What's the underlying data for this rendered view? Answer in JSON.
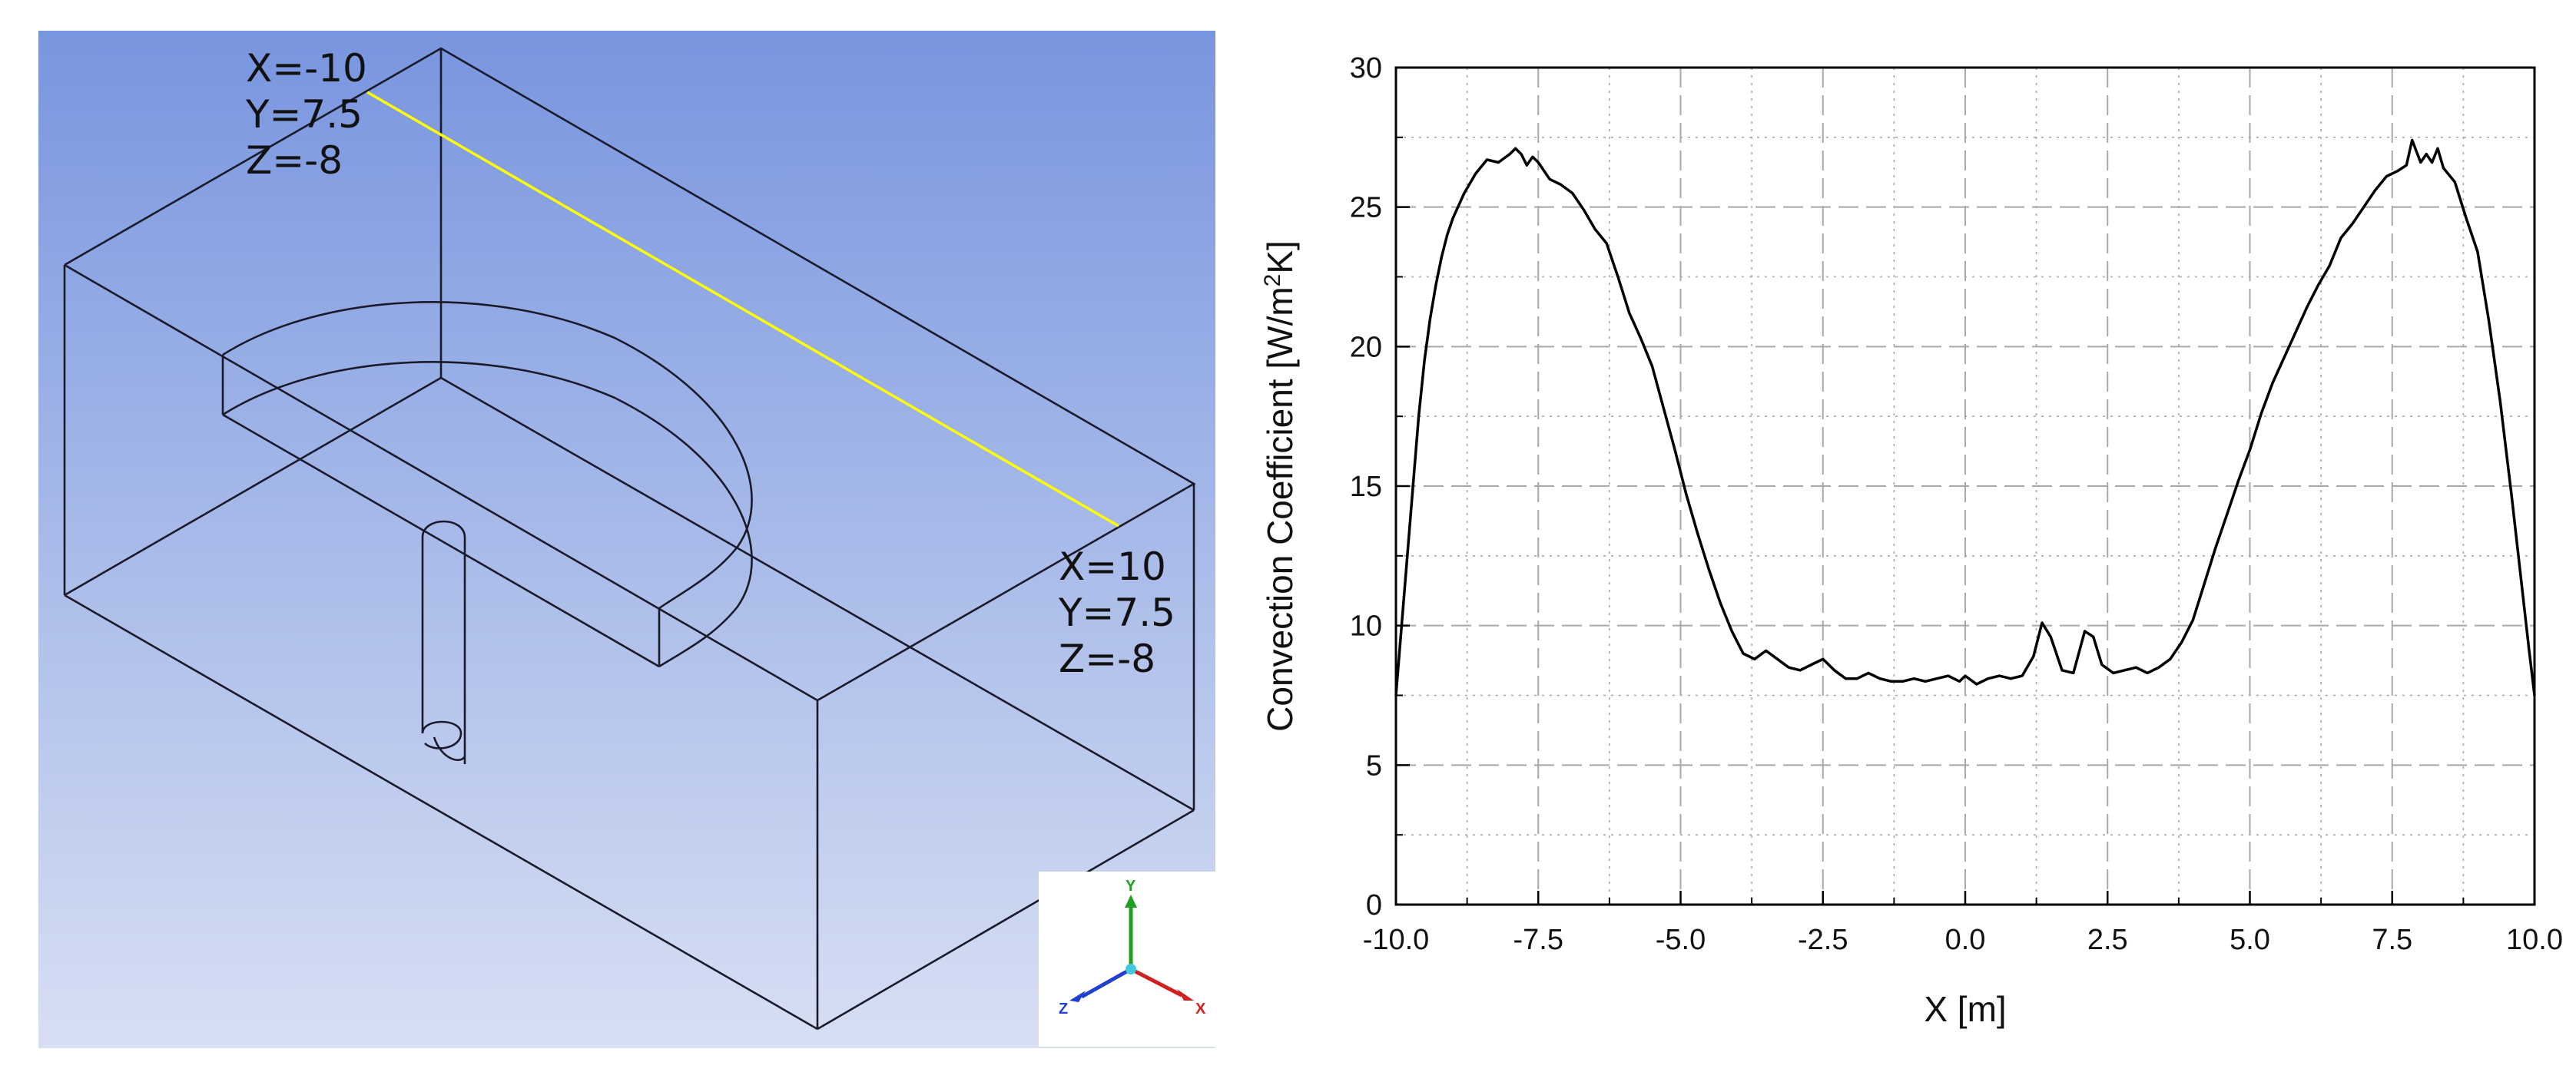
{
  "colors": {
    "viewport_top": "#7895df",
    "viewport_bottom": "#d7dff3",
    "line_probe": "#ffff00",
    "wireframe": "#1a1a2a",
    "curve": "#000000",
    "grid": "#a8a8a8",
    "axis_x": "#d02020",
    "axis_y": "#20a020",
    "axis_z": "#2040d0"
  },
  "viewport": {
    "point_start": {
      "x": "X=-10",
      "y": "Y=7.5",
      "z": "Z=-8"
    },
    "point_end": {
      "x": "X=10",
      "y": "Y=7.5",
      "z": "Z=-8"
    },
    "triad": {
      "x_label": "X",
      "y_label": "Y",
      "z_label": "Z"
    }
  },
  "chart_data": {
    "type": "line",
    "title": "",
    "xlabel": "X [m]",
    "ylabel_main": "Convection Coefficient [W/m",
    "ylabel_sup": "2",
    "ylabel_end": "K]",
    "xlim": [
      -10.0,
      10.0
    ],
    "ylim": [
      0,
      30
    ],
    "xticks": [
      "-10.0",
      "-7.5",
      "-5.0",
      "-2.5",
      "0.0",
      "2.5",
      "5.0",
      "7.5",
      "10.0"
    ],
    "xtick_values": [
      -10.0,
      -7.5,
      -5.0,
      -2.5,
      0.0,
      2.5,
      5.0,
      7.5,
      10.0
    ],
    "yticks": [
      "0",
      "5",
      "10",
      "15",
      "20",
      "25",
      "30"
    ],
    "ytick_values": [
      0,
      5,
      10,
      15,
      20,
      25,
      30
    ],
    "grid": true,
    "series": [
      {
        "x": [
          -10.0,
          -9.9,
          -9.8,
          -9.7,
          -9.6,
          -9.5,
          -9.4,
          -9.3,
          -9.2,
          -9.1,
          -9.0,
          -8.8,
          -8.6,
          -8.4,
          -8.2,
          -8.0,
          -7.9,
          -7.8,
          -7.7,
          -7.6,
          -7.5,
          -7.3,
          -7.1,
          -6.9,
          -6.7,
          -6.5,
          -6.3,
          -6.1,
          -5.9,
          -5.7,
          -5.5,
          -5.3,
          -5.1,
          -4.9,
          -4.7,
          -4.5,
          -4.3,
          -4.1,
          -3.9,
          -3.7,
          -3.5,
          -3.3,
          -3.1,
          -2.9,
          -2.7,
          -2.5,
          -2.3,
          -2.1,
          -1.9,
          -1.7,
          -1.5,
          -1.3,
          -1.1,
          -0.9,
          -0.7,
          -0.5,
          -0.3,
          -0.1,
          0.0,
          0.2,
          0.4,
          0.6,
          0.8,
          1.0,
          1.2,
          1.35,
          1.5,
          1.7,
          1.9,
          2.1,
          2.25,
          2.4,
          2.6,
          2.8,
          3.0,
          3.2,
          3.4,
          3.6,
          3.8,
          4.0,
          4.2,
          4.4,
          4.6,
          4.8,
          5.0,
          5.2,
          5.4,
          5.6,
          5.8,
          6.0,
          6.2,
          6.4,
          6.6,
          6.8,
          7.0,
          7.2,
          7.4,
          7.6,
          7.75,
          7.85,
          8.0,
          8.1,
          8.2,
          8.3,
          8.4,
          8.6,
          8.8,
          9.0,
          9.2,
          9.4,
          9.6,
          9.8,
          9.9,
          10.0
        ],
        "y": [
          7.5,
          10.0,
          12.5,
          15.0,
          17.5,
          19.5,
          21.0,
          22.2,
          23.2,
          24.0,
          24.6,
          25.5,
          26.2,
          26.7,
          26.6,
          26.9,
          27.1,
          26.9,
          26.5,
          26.8,
          26.6,
          26.0,
          25.8,
          25.5,
          24.9,
          24.2,
          23.7,
          22.5,
          21.2,
          20.3,
          19.3,
          17.8,
          16.3,
          14.7,
          13.3,
          12.0,
          10.8,
          9.8,
          9.0,
          8.8,
          9.1,
          8.8,
          8.5,
          8.4,
          8.6,
          8.8,
          8.4,
          8.1,
          8.1,
          8.3,
          8.1,
          8.0,
          8.0,
          8.1,
          8.0,
          8.1,
          8.2,
          8.0,
          8.2,
          7.9,
          8.1,
          8.2,
          8.1,
          8.2,
          8.9,
          10.1,
          9.6,
          8.4,
          8.3,
          9.8,
          9.6,
          8.6,
          8.3,
          8.4,
          8.5,
          8.3,
          8.5,
          8.8,
          9.4,
          10.2,
          11.5,
          12.8,
          14.0,
          15.2,
          16.3,
          17.6,
          18.7,
          19.6,
          20.5,
          21.4,
          22.2,
          22.9,
          23.9,
          24.4,
          25.0,
          25.6,
          26.1,
          26.3,
          26.5,
          27.4,
          26.6,
          26.9,
          26.6,
          27.1,
          26.4,
          25.9,
          24.6,
          23.4,
          20.9,
          18.0,
          14.6,
          11.0,
          9.2,
          7.5
        ]
      }
    ]
  }
}
